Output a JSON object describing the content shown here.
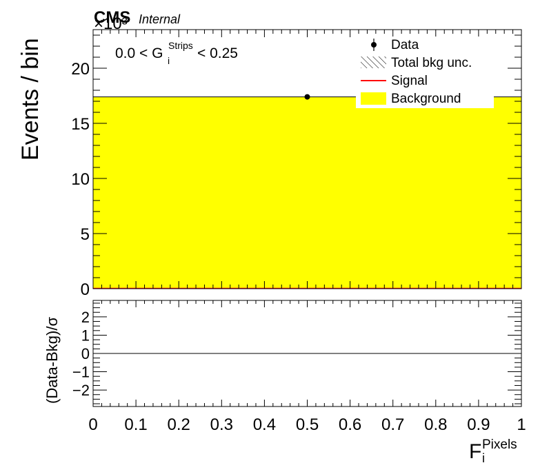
{
  "header": {
    "experiment": "CMS",
    "status": "Internal",
    "exponent": "×10³"
  },
  "chart_data": [
    {
      "type": "bar",
      "panel": "main",
      "ylabel": "Events / bin",
      "xlim": [
        0,
        1
      ],
      "ylim": [
        0,
        23.5
      ],
      "yticks": [
        0,
        5,
        10,
        15,
        20
      ],
      "annotation": {
        "pre": "0.0 < G",
        "sub": "i",
        "sup": "Strips",
        "post": " < 0.25"
      },
      "legend": {
        "placement": "top-right",
        "entries": [
          {
            "label": "Data",
            "marker": "point"
          },
          {
            "label": "Total bkg unc.",
            "marker": "hatch"
          },
          {
            "label": "Signal",
            "marker": "line",
            "color": "#ff0000"
          },
          {
            "label": "Background",
            "marker": "fill",
            "color": "#ffff00"
          }
        ]
      },
      "series": [
        {
          "name": "Background",
          "kind": "fill",
          "color": "#ffff00",
          "bins": [
            {
              "x0": 0,
              "x1": 1,
              "y": 17.4
            }
          ]
        },
        {
          "name": "Signal",
          "kind": "line",
          "color": "#ff0000",
          "bins": [
            {
              "x0": 0,
              "x1": 1,
              "y": 0
            }
          ]
        },
        {
          "name": "Data",
          "kind": "points",
          "color": "#000000",
          "points": [
            {
              "x": 0.5,
              "y": 17.4
            }
          ]
        }
      ]
    },
    {
      "type": "line",
      "panel": "ratio",
      "ylabel": "(Data-Bkg)/σ",
      "xlabel": {
        "base": "F",
        "sub": "i",
        "sup": "Pixels"
      },
      "xlim": [
        0,
        1
      ],
      "ylim": [
        -2.9,
        2.9
      ],
      "yticks": [
        -2,
        -1,
        0,
        1,
        2
      ],
      "ytick_labels": [
        "−2",
        "−1",
        "0",
        "1",
        "2"
      ],
      "xticks": [
        0,
        0.1,
        0.2,
        0.3,
        0.4,
        0.5,
        0.6,
        0.7,
        0.8,
        0.9,
        1
      ],
      "xtick_labels": [
        "0",
        "0.1",
        "0.2",
        "0.3",
        "0.4",
        "0.5",
        "0.6",
        "0.7",
        "0.8",
        "0.9",
        "1"
      ],
      "reference_line": 0
    }
  ]
}
